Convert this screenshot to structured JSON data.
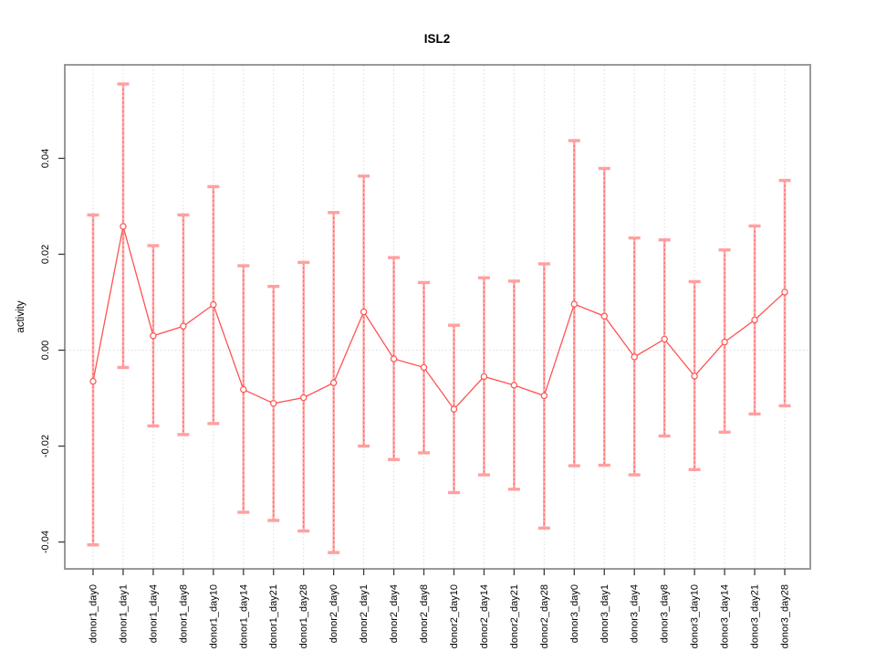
{
  "page": {
    "background": "#ffffff"
  },
  "chart_data": {
    "type": "line",
    "title": "ISL2",
    "xlabel": "",
    "ylabel": "activity",
    "legend": "none",
    "categories": [
      "donor1_day0",
      "donor1_day1",
      "donor1_day4",
      "donor1_day8",
      "donor1_day10",
      "donor1_day14",
      "donor1_day21",
      "donor1_day28",
      "donor2_day0",
      "donor2_day1",
      "donor2_day4",
      "donor2_day8",
      "donor2_day10",
      "donor2_day14",
      "donor2_day21",
      "donor2_day28",
      "donor3_day0",
      "donor3_day1",
      "donor3_day4",
      "donor3_day8",
      "donor3_day10",
      "donor3_day14",
      "donor3_day21",
      "donor3_day28"
    ],
    "series": [
      {
        "name": "activity",
        "values": [
          -0.0065,
          0.0258,
          0.003,
          0.005,
          0.0095,
          -0.0082,
          -0.0111,
          -0.0099,
          -0.0068,
          0.008,
          -0.0018,
          -0.0036,
          -0.0123,
          -0.0055,
          -0.0073,
          -0.0095,
          0.0096,
          0.0071,
          -0.0014,
          0.0023,
          -0.0054,
          0.0017,
          0.0063,
          0.0121
        ],
        "upper": [
          0.0282,
          0.0555,
          0.0218,
          0.0282,
          0.0341,
          0.0176,
          0.0133,
          0.0183,
          0.0287,
          0.0363,
          0.0193,
          0.0141,
          0.0052,
          0.0151,
          0.0144,
          0.018,
          0.0437,
          0.0379,
          0.0234,
          0.023,
          0.0143,
          0.0209,
          0.0259,
          0.0354
        ],
        "lower": [
          -0.0406,
          -0.0036,
          -0.0158,
          -0.0176,
          -0.0153,
          -0.0338,
          -0.0355,
          -0.0377,
          -0.0422,
          -0.02,
          -0.0228,
          -0.0214,
          -0.0297,
          -0.026,
          -0.029,
          -0.0371,
          -0.0241,
          -0.024,
          -0.026,
          -0.0179,
          -0.0249,
          -0.0171,
          -0.0133,
          -0.0116
        ]
      }
    ],
    "ylim": [
      -0.0456,
      0.0595
    ],
    "yticks": {
      "values": [
        -0.04,
        -0.02,
        0,
        0.02,
        0.04
      ],
      "labels": [
        "-0.04",
        "-0.02",
        "0.00",
        "0.02",
        "0.04"
      ]
    },
    "grid": {
      "vertical": "dotted",
      "zero_line": "dotted"
    },
    "colors": {
      "point": "#ff5252",
      "line": "#ff5252",
      "error_bar": "#ffadad",
      "error_bar_dash": "#ff6060",
      "error_cap": "#ffa0a0",
      "grid": "#dcdcdc",
      "box": "#999999",
      "tick": "#3c3c3c",
      "text": "#000000",
      "background": "#ffffff"
    }
  }
}
